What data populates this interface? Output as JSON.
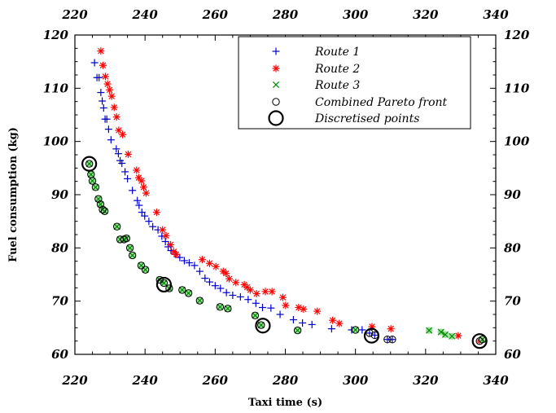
{
  "chart_data": {
    "type": "scatter",
    "title": "",
    "xlabel": "Taxi time (s)",
    "ylabel": "Fuel consumption (kg)",
    "xlim": [
      220,
      340
    ],
    "ylim": [
      60,
      120
    ],
    "xticks": [
      "220",
      "240",
      "260",
      "280",
      "300",
      "320",
      "340"
    ],
    "yticks": [
      "60",
      "70",
      "80",
      "90",
      "100",
      "110",
      "120"
    ],
    "grid": false,
    "legend_position": "top-right",
    "series": [
      {
        "name": "Route 1",
        "marker": "plus",
        "color": "#0000cc",
        "points": [
          [
            225.6,
            114.8
          ],
          [
            226.3,
            112.0
          ],
          [
            226.9,
            112.0
          ],
          [
            227.4,
            109.2
          ],
          [
            227.8,
            107.6
          ],
          [
            228.2,
            106.3
          ],
          [
            228.6,
            104.2
          ],
          [
            229.1,
            104.2
          ],
          [
            229.6,
            102.3
          ],
          [
            230.3,
            100.3
          ],
          [
            231.8,
            98.6
          ],
          [
            232.4,
            97.7
          ],
          [
            232.9,
            96.4
          ],
          [
            233.4,
            95.9
          ],
          [
            234.3,
            94.3
          ],
          [
            235.0,
            93.0
          ],
          [
            236.4,
            90.8
          ],
          [
            237.8,
            88.9
          ],
          [
            238.3,
            88.0
          ],
          [
            239.1,
            86.7
          ],
          [
            239.9,
            86.0
          ],
          [
            241.1,
            85.0
          ],
          [
            242.2,
            84.0
          ],
          [
            243.7,
            83.4
          ],
          [
            244.8,
            82.2
          ],
          [
            245.8,
            81.2
          ],
          [
            246.6,
            80.2
          ],
          [
            247.4,
            79.5
          ],
          [
            248.6,
            78.8
          ],
          [
            249.9,
            78.2
          ],
          [
            251.2,
            77.6
          ],
          [
            252.6,
            77.2
          ],
          [
            254.1,
            76.7
          ],
          [
            255.6,
            75.6
          ],
          [
            257.1,
            74.3
          ],
          [
            258.4,
            73.6
          ],
          [
            260.0,
            72.9
          ],
          [
            261.5,
            72.4
          ],
          [
            263.2,
            71.6
          ],
          [
            265.0,
            71.1
          ],
          [
            267.2,
            70.8
          ],
          [
            269.4,
            70.3
          ],
          [
            271.6,
            69.6
          ],
          [
            273.5,
            68.8
          ],
          [
            275.9,
            68.7
          ],
          [
            278.5,
            67.5
          ],
          [
            282.3,
            66.5
          ],
          [
            284.9,
            65.9
          ],
          [
            287.6,
            65.6
          ],
          [
            293.2,
            64.8
          ],
          [
            298.9,
            64.6
          ],
          [
            301.9,
            64.6
          ],
          [
            304.0,
            64.0
          ],
          [
            305.5,
            63.6
          ],
          [
            309.1,
            62.8
          ],
          [
            310.5,
            62.8
          ]
        ]
      },
      {
        "name": "Route 2",
        "marker": "asterisk",
        "color": "#ff0000",
        "points": [
          [
            227.4,
            117.0
          ],
          [
            228.0,
            114.3
          ],
          [
            228.7,
            112.2
          ],
          [
            229.3,
            110.8
          ],
          [
            229.9,
            109.7
          ],
          [
            230.5,
            108.5
          ],
          [
            231.2,
            106.4
          ],
          [
            231.9,
            104.6
          ],
          [
            232.5,
            102.1
          ],
          [
            233.6,
            101.3
          ],
          [
            235.2,
            97.6
          ],
          [
            237.6,
            94.6
          ],
          [
            238.2,
            93.2
          ],
          [
            239.0,
            92.6
          ],
          [
            239.6,
            91.4
          ],
          [
            240.3,
            90.3
          ],
          [
            243.3,
            86.7
          ],
          [
            245.0,
            83.4
          ],
          [
            246.0,
            82.3
          ],
          [
            247.3,
            80.6
          ],
          [
            248.2,
            79.3
          ],
          [
            248.9,
            78.8
          ],
          [
            256.3,
            77.8
          ],
          [
            258.4,
            77.1
          ],
          [
            260.2,
            76.5
          ],
          [
            262.3,
            75.6
          ],
          [
            263.1,
            75.2
          ],
          [
            264.0,
            74.2
          ],
          [
            265.9,
            73.5
          ],
          [
            268.3,
            73.1
          ],
          [
            269.1,
            72.6
          ],
          [
            270.0,
            72.1
          ],
          [
            271.8,
            71.4
          ],
          [
            274.3,
            71.8
          ],
          [
            276.2,
            71.8
          ],
          [
            279.3,
            70.7
          ],
          [
            280.1,
            69.2
          ],
          [
            283.8,
            68.8
          ],
          [
            285.2,
            68.5
          ],
          [
            289.1,
            68.1
          ],
          [
            293.5,
            66.4
          ],
          [
            295.4,
            65.8
          ],
          [
            304.7,
            65.2
          ],
          [
            310.1,
            64.8
          ],
          [
            329.3,
            63.5
          ],
          [
            335.4,
            62.5
          ]
        ]
      },
      {
        "name": "Route 3",
        "marker": "cross",
        "color": "#008800",
        "points": [
          [
            224.1,
            95.8
          ],
          [
            224.6,
            93.8
          ],
          [
            225.0,
            92.6
          ],
          [
            225.9,
            91.4
          ],
          [
            226.7,
            89.2
          ],
          [
            227.3,
            88.2
          ],
          [
            227.9,
            87.2
          ],
          [
            228.5,
            86.9
          ],
          [
            232.0,
            84.0
          ],
          [
            232.9,
            81.6
          ],
          [
            234.0,
            81.6
          ],
          [
            234.7,
            81.8
          ],
          [
            235.7,
            80.0
          ],
          [
            236.4,
            78.6
          ],
          [
            238.9,
            76.7
          ],
          [
            240.1,
            75.9
          ],
          [
            244.2,
            74.0
          ],
          [
            245.4,
            73.4
          ],
          [
            246.9,
            72.4
          ],
          [
            250.6,
            72.1
          ],
          [
            252.4,
            71.5
          ],
          [
            255.6,
            70.1
          ],
          [
            261.4,
            68.9
          ],
          [
            263.6,
            68.6
          ],
          [
            271.4,
            67.3
          ],
          [
            273.1,
            65.5
          ],
          [
            283.5,
            64.5
          ],
          [
            300.0,
            64.6
          ],
          [
            321.0,
            64.5
          ],
          [
            324.4,
            64.2
          ],
          [
            325.6,
            63.7
          ],
          [
            327.5,
            63.4
          ],
          [
            336.2,
            62.8
          ]
        ]
      },
      {
        "name": "Combined Pareto front",
        "marker": "circle",
        "color": "#000000",
        "points": [
          [
            224.1,
            95.8
          ],
          [
            224.6,
            93.8
          ],
          [
            225.0,
            92.6
          ],
          [
            225.9,
            91.4
          ],
          [
            226.7,
            89.2
          ],
          [
            227.3,
            88.2
          ],
          [
            227.9,
            87.2
          ],
          [
            228.5,
            86.9
          ],
          [
            232.0,
            84.0
          ],
          [
            232.9,
            81.6
          ],
          [
            234.0,
            81.6
          ],
          [
            234.7,
            81.8
          ],
          [
            235.7,
            80.0
          ],
          [
            236.4,
            78.6
          ],
          [
            238.9,
            76.7
          ],
          [
            240.1,
            75.9
          ],
          [
            244.2,
            74.0
          ],
          [
            245.4,
            73.4
          ],
          [
            246.9,
            72.4
          ],
          [
            250.6,
            72.1
          ],
          [
            252.4,
            71.5
          ],
          [
            255.6,
            70.1
          ],
          [
            261.4,
            68.9
          ],
          [
            263.6,
            68.6
          ],
          [
            271.4,
            67.3
          ],
          [
            273.1,
            65.5
          ],
          [
            283.5,
            64.5
          ],
          [
            300.0,
            64.6
          ],
          [
            304.0,
            64.0
          ],
          [
            305.5,
            63.6
          ],
          [
            309.1,
            62.8
          ],
          [
            310.5,
            62.8
          ],
          [
            335.4,
            62.5
          ],
          [
            336.2,
            62.8
          ]
        ]
      },
      {
        "name": "Discretised points",
        "marker": "circle-large",
        "color": "#000000",
        "points": [
          [
            224.1,
            95.8
          ],
          [
            245.4,
            73.1
          ],
          [
            273.6,
            65.4
          ],
          [
            304.6,
            63.5
          ],
          [
            335.4,
            62.5
          ]
        ]
      }
    ]
  }
}
